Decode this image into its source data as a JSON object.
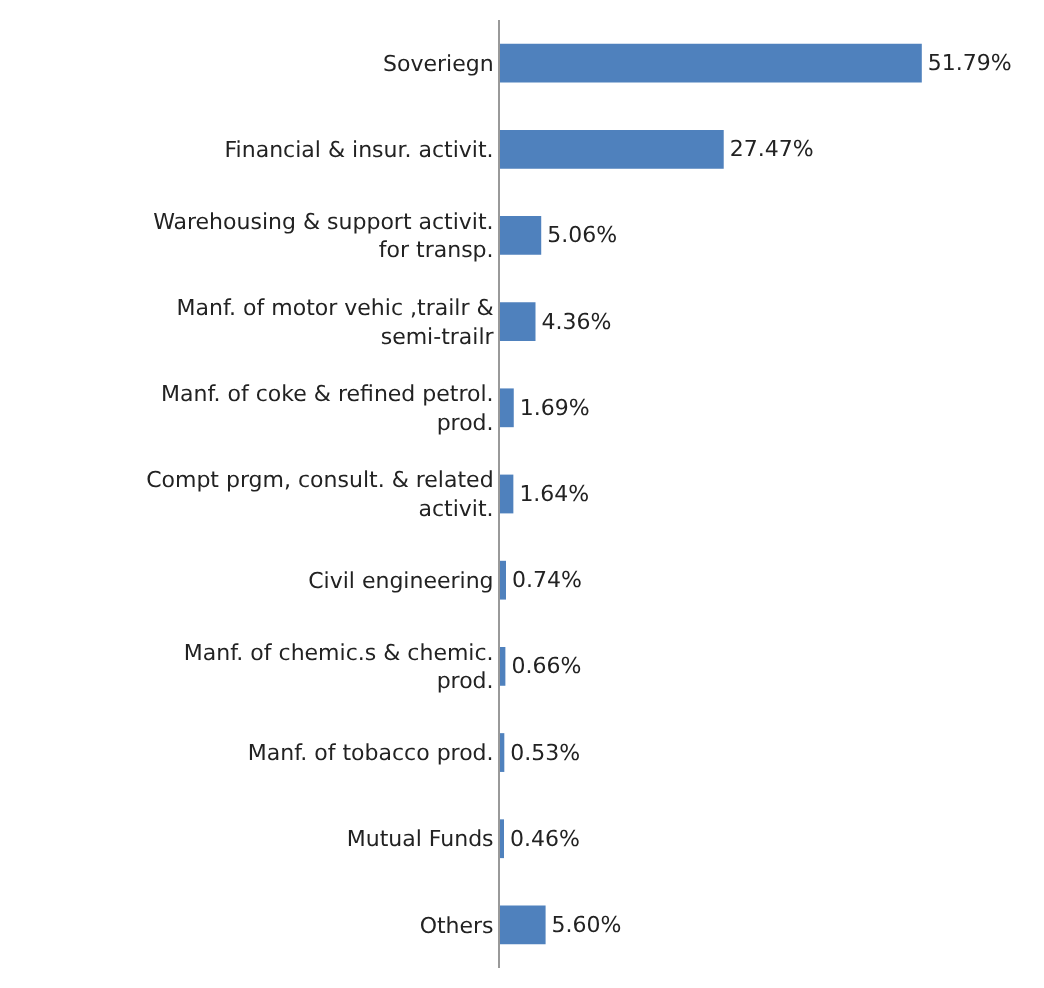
{
  "chart_data": {
    "type": "bar",
    "orientation": "horizontal",
    "categories": [
      "Soveriegn",
      "Financial & insur. activit.",
      "Warehousing & support activit. for transp.",
      "Manf. of motor vehic ,trailr & semi-trailr",
      "Manf. of coke & refined petrol. prod.",
      "Compt prgm, consult. & related activit.",
      "Civil engineering",
      "Manf. of chemic.s & chemic. prod.",
      "Manf. of tobacco prod.",
      "Mutual Funds",
      "Others"
    ],
    "values": [
      51.79,
      27.47,
      5.06,
      4.36,
      1.69,
      1.64,
      0.74,
      0.66,
      0.53,
      0.46,
      5.6
    ],
    "value_labels": [
      "51.79%",
      "27.47%",
      "5.06%",
      "4.36%",
      "1.69%",
      "1.64%",
      "0.74%",
      "0.66%",
      "0.53%",
      "0.46%",
      "5.60%"
    ],
    "color": "#4f81bd",
    "grid": false,
    "legend": false,
    "tick_labels": "y"
  }
}
